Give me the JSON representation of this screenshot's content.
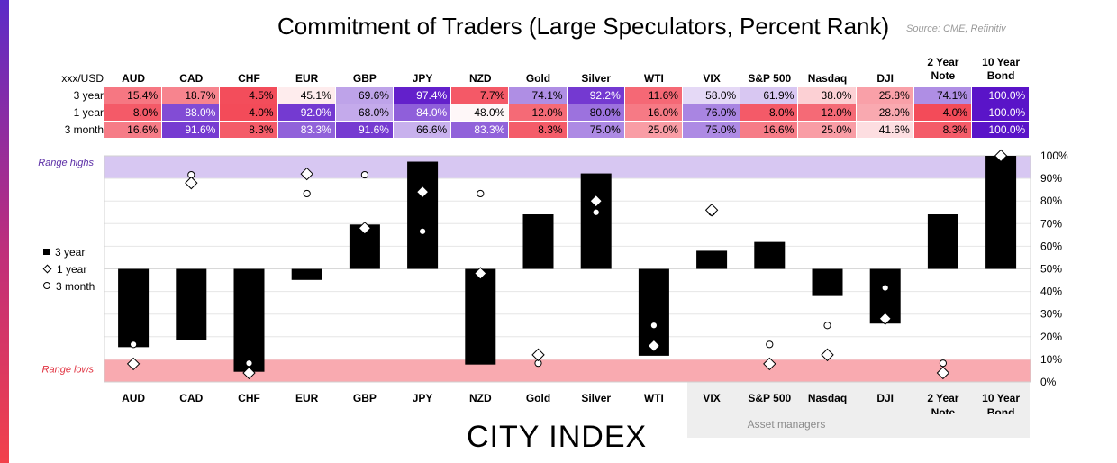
{
  "header": {
    "title": "Commitment of Traders (Large Speculators, Percent Rank)",
    "source": "Source: CME, Refinitiv",
    "corner_label": "xxx/USD",
    "row_labels": [
      "3 year",
      "1 year",
      "3 month"
    ]
  },
  "colors": {
    "low": "#f23b4b",
    "mid": "#ffffff",
    "high": "#5a14c8",
    "range_high_band": "#d7c7f2",
    "range_low_band": "#f9aab0",
    "range_high_text": "#5b2ea6",
    "range_low_text": "#e0313f"
  },
  "footer": {
    "brand": "CITY INDEX",
    "asset_managers_label": "Asset managers"
  },
  "chart_data": {
    "type": "bar",
    "categories": [
      [
        "AUD"
      ],
      [
        "CAD"
      ],
      [
        "CHF"
      ],
      [
        "EUR"
      ],
      [
        "GBP"
      ],
      [
        "JPY"
      ],
      [
        "NZD"
      ],
      [
        "Gold"
      ],
      [
        "Silver"
      ],
      [
        "WTI"
      ],
      [
        "VIX"
      ],
      [
        "S&P 500"
      ],
      [
        "Nasdaq"
      ],
      [
        "DJI"
      ],
      [
        "2 Year",
        "Note"
      ],
      [
        "10 Year",
        "Bond"
      ]
    ],
    "baseline": 50,
    "ylim": [
      0,
      100
    ],
    "yticks": [
      "0%",
      "10%",
      "20%",
      "30%",
      "40%",
      "50%",
      "60%",
      "70%",
      "80%",
      "90%",
      "100%"
    ],
    "range_highs": {
      "label": "Range highs",
      "from": 90,
      "to": 100
    },
    "range_lows": {
      "label": "Range lows",
      "from": 0,
      "to": 10
    },
    "series": [
      {
        "name": "3 year",
        "marker": "bar",
        "values": [
          15.4,
          18.7,
          4.5,
          45.1,
          69.6,
          97.4,
          7.7,
          74.1,
          92.2,
          11.6,
          58.0,
          61.9,
          38.0,
          25.8,
          74.1,
          100.0
        ],
        "labels": [
          "15.4%",
          "18.7%",
          "4.5%",
          "45.1%",
          "69.6%",
          "97.4%",
          "7.7%",
          "74.1%",
          "92.2%",
          "11.6%",
          "58.0%",
          "61.9%",
          "38.0%",
          "25.8%",
          "74.1%",
          "100.0%"
        ]
      },
      {
        "name": "1 year",
        "marker": "diamond",
        "values": [
          8.0,
          88.0,
          4.0,
          92.0,
          68.0,
          84.0,
          48.0,
          12.0,
          80.0,
          16.0,
          76.0,
          8.0,
          12.0,
          28.0,
          4.0,
          100.0
        ],
        "labels": [
          "8.0%",
          "88.0%",
          "4.0%",
          "92.0%",
          "68.0%",
          "84.0%",
          "48.0%",
          "12.0%",
          "80.0%",
          "16.0%",
          "76.0%",
          "8.0%",
          "12.0%",
          "28.0%",
          "4.0%",
          "100.0%"
        ]
      },
      {
        "name": "3 month",
        "marker": "circle",
        "values": [
          16.6,
          91.6,
          8.3,
          83.3,
          91.6,
          66.6,
          83.3,
          8.3,
          75.0,
          25.0,
          75.0,
          16.6,
          25.0,
          41.6,
          8.3,
          100.0
        ],
        "labels": [
          "16.6%",
          "91.6%",
          "8.3%",
          "83.3%",
          "91.6%",
          "66.6%",
          "83.3%",
          "8.3%",
          "75.0%",
          "25.0%",
          "75.0%",
          "16.6%",
          "25.0%",
          "41.6%",
          "8.3%",
          "100.0%"
        ]
      }
    ],
    "legend": [
      "3 year",
      "1 year",
      "3 month"
    ],
    "grid": true,
    "legend_position": "left"
  }
}
